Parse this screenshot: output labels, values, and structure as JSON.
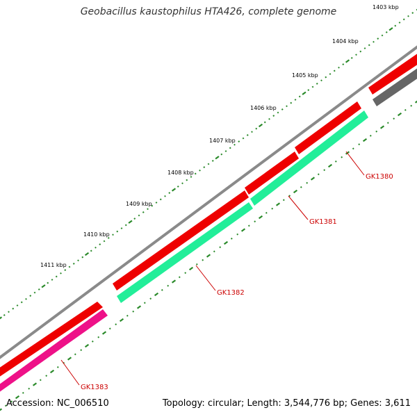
{
  "title": "Geobacillus kaustophilus HTA426, complete genome",
  "footer": {
    "accession": "Accession: NC_006510",
    "summary": "Topology: circular; Length: 3,544,776 bp; Genes: 3,611"
  },
  "kbp_labels": [
    "1403 kbp",
    "1404 kbp",
    "1405 kbp",
    "1406 kbp",
    "1407 kbp",
    "1408 kbp",
    "1409 kbp",
    "1410 kbp",
    "1411 kbp"
  ],
  "gene_labels": [
    "GK1380",
    "GK1381",
    "GK1382",
    "GK1383"
  ],
  "colors": {
    "backbone": "#8a8a8a",
    "gene_red": "#ee0000",
    "gene_green": "#22ee99",
    "gene_magenta": "#ee1188",
    "gene_gray": "#666666",
    "tick": "#2a8a2a",
    "label": "#cc0000"
  }
}
